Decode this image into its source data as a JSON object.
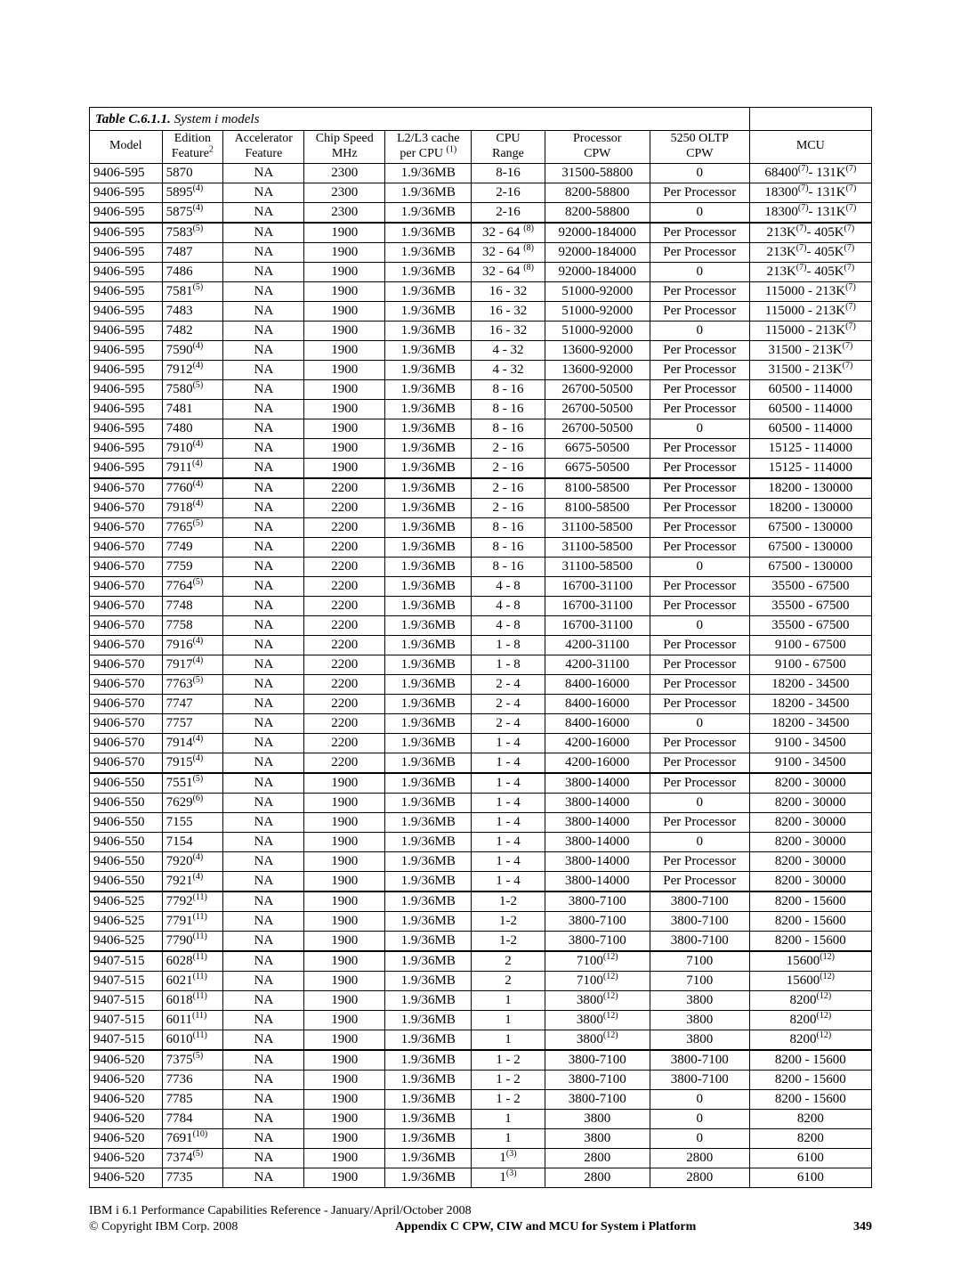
{
  "title_bold": "Table C.6.1.1.",
  "title_rest": "  System i models",
  "headers": {
    "model": "Model",
    "edition_l1": "Edition",
    "edition_l2": "Feature",
    "edition_sup": "2",
    "accel_l1": "Accelerator",
    "accel_l2": "Feature",
    "chip_l1": "Chip Speed",
    "chip_l2": "MHz",
    "cache_l1": "L2/L3 cache",
    "cache_l2": "per CPU ",
    "cache_sup": "(1)",
    "cpu_l1": "CPU",
    "cpu_l2": "Range",
    "proc_l1": "Processor",
    "proc_l2": "CPW",
    "oltp_l1": "5250 OLTP",
    "oltp_l2": "CPW",
    "mcu": "MCU"
  },
  "footer": {
    "line1": "IBM i 6.1 Performance Capabilities Reference - January/April/October 2008",
    "copyright": "© Copyright IBM Corp. 2008",
    "appendix": "Appendix C  CPW, CIW and MCU for  System i Platform",
    "page": "349"
  },
  "rows": [
    {
      "m": "9406-595",
      "ef": "5870",
      "efS": "",
      "ac": "NA",
      "ch": "2300",
      "ca": "1.9/36MB",
      "cr": "8-16",
      "crS": "",
      "pc": "31500-58800",
      "ol": "0",
      "mc": "68400",
      "mcS": "(7)",
      "mc2": "- 131K",
      "mc2S": "(7)"
    },
    {
      "m": "9406-595",
      "ef": "5895",
      "efS": "(4)",
      "ac": "NA",
      "ch": "2300",
      "ca": "1.9/36MB",
      "cr": "2-16",
      "crS": "",
      "pc": "8200-58800",
      "ol": "Per Processor",
      "mc": "18300",
      "mcS": "(7)",
      "mc2": "- 131K",
      "mc2S": "(7)"
    },
    {
      "m": "9406-595",
      "ef": "5875",
      "efS": "(4)",
      "ac": "NA",
      "ch": "2300",
      "ca": "1.9/36MB",
      "cr": "2-16",
      "crS": "",
      "pc": "8200-58800",
      "ol": "0",
      "mc": "18300",
      "mcS": "(7)",
      "mc2": "- 131K",
      "mc2S": "(7)"
    },
    {
      "sep": true,
      "m": "9406-595",
      "ef": "7583",
      "efS": "(5)",
      "ac": "NA",
      "ch": "1900",
      "ca": "1.9/36MB",
      "cr": "32 - 64 ",
      "crS": "(8)",
      "pc": "92000-184000",
      "ol": "Per Processor",
      "mc": "213K",
      "mcS": "(7)",
      "mc2": "- 405K",
      "mc2S": "(7)"
    },
    {
      "m": "9406-595",
      "ef": "7487",
      "efS": "",
      "ac": "NA",
      "ch": "1900",
      "ca": "1.9/36MB",
      "cr": "32 - 64 ",
      "crS": "(8)",
      "pc": "92000-184000",
      "ol": "Per Processor",
      "mc": "213K",
      "mcS": "(7)",
      "mc2": "- 405K",
      "mc2S": "(7)"
    },
    {
      "m": "9406-595",
      "ef": "7486",
      "efS": "",
      "ac": "NA",
      "ch": "1900",
      "ca": "1.9/36MB",
      "cr": "32 - 64 ",
      "crS": "(8)",
      "pc": "92000-184000",
      "ol": "0",
      "mc": "213K",
      "mcS": "(7)",
      "mc2": "- 405K",
      "mc2S": "(7)"
    },
    {
      "m": "9406-595",
      "ef": "7581",
      "efS": "(5)",
      "ac": "NA",
      "ch": "1900",
      "ca": "1.9/36MB",
      "cr": "16 - 32",
      "crS": "",
      "pc": "51000-92000",
      "ol": "Per Processor",
      "mc": "115000 - 213K",
      "mcS": "(7)",
      "mc2": "",
      "mc2S": ""
    },
    {
      "m": "9406-595",
      "ef": "7483",
      "efS": "",
      "ac": "NA",
      "ch": "1900",
      "ca": "1.9/36MB",
      "cr": "16 - 32",
      "crS": "",
      "pc": "51000-92000",
      "ol": "Per Processor",
      "mc": "115000 - 213K",
      "mcS": "(7)",
      "mc2": "",
      "mc2S": ""
    },
    {
      "m": "9406-595",
      "ef": "7482",
      "efS": "",
      "ac": "NA",
      "ch": "1900",
      "ca": "1.9/36MB",
      "cr": "16 - 32",
      "crS": "",
      "pc": "51000-92000",
      "ol": "0",
      "mc": "115000 - 213K",
      "mcS": "(7)",
      "mc2": "",
      "mc2S": ""
    },
    {
      "m": "9406-595",
      "ef": "7590",
      "efS": "(4)",
      "ac": "NA",
      "ch": "1900",
      "ca": "1.9/36MB",
      "cr": "4 - 32",
      "crS": "",
      "pc": "13600-92000",
      "ol": "Per Processor",
      "mc": "31500 - 213K",
      "mcS": "(7)",
      "mc2": "",
      "mc2S": ""
    },
    {
      "m": "9406-595",
      "ef": "7912",
      "efS": "(4)",
      "ac": "NA",
      "ch": "1900",
      "ca": "1.9/36MB",
      "cr": "4 - 32",
      "crS": "",
      "pc": "13600-92000",
      "ol": "Per Processor",
      "mc": "31500 - 213K",
      "mcS": "(7)",
      "mc2": "",
      "mc2S": ""
    },
    {
      "m": "9406-595",
      "ef": "7580",
      "efS": "(5)",
      "ac": "NA",
      "ch": "1900",
      "ca": "1.9/36MB",
      "cr": "8 - 16",
      "crS": "",
      "pc": "26700-50500",
      "ol": "Per Processor",
      "mc": "60500 - 114000",
      "mcS": "",
      "mc2": "",
      "mc2S": ""
    },
    {
      "m": "9406-595",
      "ef": "7481",
      "efS": "",
      "ac": "NA",
      "ch": "1900",
      "ca": "1.9/36MB",
      "cr": "8 - 16",
      "crS": "",
      "pc": "26700-50500",
      "ol": "Per Processor",
      "mc": "60500 - 114000",
      "mcS": "",
      "mc2": "",
      "mc2S": ""
    },
    {
      "m": "9406-595",
      "ef": "7480",
      "efS": "",
      "ac": "NA",
      "ch": "1900",
      "ca": "1.9/36MB",
      "cr": "8 - 16",
      "crS": "",
      "pc": "26700-50500",
      "ol": "0",
      "mc": "60500 - 114000",
      "mcS": "",
      "mc2": "",
      "mc2S": ""
    },
    {
      "m": "9406-595",
      "ef": "7910",
      "efS": "(4)",
      "ac": "NA",
      "ch": "1900",
      "ca": "1.9/36MB",
      "cr": "2 - 16",
      "crS": "",
      "pc": "6675-50500",
      "ol": "Per Processor",
      "mc": "15125 - 114000",
      "mcS": "",
      "mc2": "",
      "mc2S": ""
    },
    {
      "m": "9406-595",
      "ef": "7911",
      "efS": "(4)",
      "ac": "NA",
      "ch": "1900",
      "ca": "1.9/36MB",
      "cr": "2 - 16",
      "crS": "",
      "pc": "6675-50500",
      "ol": "Per Processor",
      "mc": "15125 - 114000",
      "mcS": "",
      "mc2": "",
      "mc2S": ""
    },
    {
      "sep": true,
      "m": "9406-570",
      "ef": "7760",
      "efS": "(4)",
      "ac": "NA",
      "ch": "2200",
      "ca": "1.9/36MB",
      "cr": "2 - 16",
      "crS": "",
      "pc": "8100-58500",
      "ol": "Per Processor",
      "mc": "18200 - 130000",
      "mcS": "",
      "mc2": "",
      "mc2S": ""
    },
    {
      "m": "9406-570",
      "ef": "7918",
      "efS": "(4)",
      "ac": "NA",
      "ch": "2200",
      "ca": "1.9/36MB",
      "cr": "2 - 16",
      "crS": "",
      "pc": "8100-58500",
      "ol": "Per Processor",
      "mc": "18200 - 130000",
      "mcS": "",
      "mc2": "",
      "mc2S": ""
    },
    {
      "m": "9406-570",
      "ef": "7765",
      "efS": "(5)",
      "ac": "NA",
      "ch": "2200",
      "ca": "1.9/36MB",
      "cr": "8 - 16",
      "crS": "",
      "pc": "31100-58500",
      "ol": "Per Processor",
      "mc": "67500 - 130000",
      "mcS": "",
      "mc2": "",
      "mc2S": ""
    },
    {
      "m": "9406-570",
      "ef": "7749",
      "efS": "",
      "ac": "NA",
      "ch": "2200",
      "ca": "1.9/36MB",
      "cr": "8 - 16",
      "crS": "",
      "pc": "31100-58500",
      "ol": "Per Processor",
      "mc": "67500 - 130000",
      "mcS": "",
      "mc2": "",
      "mc2S": ""
    },
    {
      "m": "9406-570",
      "ef": "7759",
      "efS": "",
      "ac": "NA",
      "ch": "2200",
      "ca": "1.9/36MB",
      "cr": "8 - 16",
      "crS": "",
      "pc": "31100-58500",
      "ol": "0",
      "mc": "67500 - 130000",
      "mcS": "",
      "mc2": "",
      "mc2S": ""
    },
    {
      "m": "9406-570",
      "ef": "7764",
      "efS": "(5)",
      "ac": "NA",
      "ch": "2200",
      "ca": "1.9/36MB",
      "cr": "4 - 8",
      "crS": "",
      "pc": "16700-31100",
      "ol": "Per Processor",
      "mc": "35500 - 67500",
      "mcS": "",
      "mc2": "",
      "mc2S": ""
    },
    {
      "m": "9406-570",
      "ef": "7748",
      "efS": "",
      "ac": "NA",
      "ch": "2200",
      "ca": "1.9/36MB",
      "cr": "4 - 8",
      "crS": "",
      "pc": "16700-31100",
      "ol": "Per Processor",
      "mc": "35500 - 67500",
      "mcS": "",
      "mc2": "",
      "mc2S": ""
    },
    {
      "m": "9406-570",
      "ef": "7758",
      "efS": "",
      "ac": "NA",
      "ch": "2200",
      "ca": "1.9/36MB",
      "cr": "4 - 8",
      "crS": "",
      "pc": "16700-31100",
      "ol": "0",
      "mc": "35500 - 67500",
      "mcS": "",
      "mc2": "",
      "mc2S": ""
    },
    {
      "m": "9406-570",
      "ef": "7916",
      "efS": "(4)",
      "ac": "NA",
      "ch": "2200",
      "ca": "1.9/36MB",
      "cr": "1 - 8",
      "crS": "",
      "pc": "4200-31100",
      "ol": "Per Processor",
      "mc": "9100 - 67500",
      "mcS": "",
      "mc2": "",
      "mc2S": ""
    },
    {
      "m": "9406-570",
      "ef": "7917",
      "efS": "(4)",
      "ac": "NA",
      "ch": "2200",
      "ca": "1.9/36MB",
      "cr": "1 - 8",
      "crS": "",
      "pc": "4200-31100",
      "ol": "Per Processor",
      "mc": "9100 - 67500",
      "mcS": "",
      "mc2": "",
      "mc2S": ""
    },
    {
      "m": "9406-570",
      "ef": "7763",
      "efS": "(5)",
      "ac": "NA",
      "ch": "2200",
      "ca": "1.9/36MB",
      "cr": "2 - 4",
      "crS": "",
      "pc": "8400-16000",
      "ol": "Per Processor",
      "mc": "18200 - 34500",
      "mcS": "",
      "mc2": "",
      "mc2S": ""
    },
    {
      "m": "9406-570",
      "ef": "7747",
      "efS": "",
      "ac": "NA",
      "ch": "2200",
      "ca": "1.9/36MB",
      "cr": "2 - 4",
      "crS": "",
      "pc": "8400-16000",
      "ol": "Per Processor",
      "mc": "18200 - 34500",
      "mcS": "",
      "mc2": "",
      "mc2S": ""
    },
    {
      "m": "9406-570",
      "ef": "7757",
      "efS": "",
      "ac": "NA",
      "ch": "2200",
      "ca": "1.9/36MB",
      "cr": "2 - 4",
      "crS": "",
      "pc": "8400-16000",
      "ol": "0",
      "mc": "18200 - 34500",
      "mcS": "",
      "mc2": "",
      "mc2S": ""
    },
    {
      "m": "9406-570",
      "ef": "7914",
      "efS": "(4)",
      "ac": "NA",
      "ch": "2200",
      "ca": "1.9/36MB",
      "cr": "1 - 4",
      "crS": "",
      "pc": "4200-16000",
      "ol": "Per Processor",
      "mc": "9100 - 34500",
      "mcS": "",
      "mc2": "",
      "mc2S": ""
    },
    {
      "m": "9406-570",
      "ef": "7915",
      "efS": "(4)",
      "ac": "NA",
      "ch": "2200",
      "ca": "1.9/36MB",
      "cr": "1 - 4",
      "crS": "",
      "pc": "4200-16000",
      "ol": "Per Processor",
      "mc": "9100 - 34500",
      "mcS": "",
      "mc2": "",
      "mc2S": ""
    },
    {
      "sep": true,
      "m": "9406-550",
      "ef": "7551",
      "efS": "(5)",
      "ac": "NA",
      "ch": "1900",
      "ca": "1.9/36MB",
      "cr": "1 - 4",
      "crS": "",
      "pc": "3800-14000",
      "ol": "Per Processor",
      "mc": "8200 - 30000",
      "mcS": "",
      "mc2": "",
      "mc2S": ""
    },
    {
      "m": "9406-550",
      "ef": "7629",
      "efS": "(6)",
      "ac": "NA",
      "ch": "1900",
      "ca": "1.9/36MB",
      "cr": "1 - 4",
      "crS": "",
      "pc": "3800-14000",
      "ol": "0",
      "mc": "8200 - 30000",
      "mcS": "",
      "mc2": "",
      "mc2S": ""
    },
    {
      "m": "9406-550",
      "ef": "7155",
      "efS": "",
      "ac": "NA",
      "ch": "1900",
      "ca": "1.9/36MB",
      "cr": "1 - 4",
      "crS": "",
      "pc": "3800-14000",
      "ol": "Per Processor",
      "mc": "8200 - 30000",
      "mcS": "",
      "mc2": "",
      "mc2S": ""
    },
    {
      "m": "9406-550",
      "ef": "7154",
      "efS": "",
      "ac": "NA",
      "ch": "1900",
      "ca": "1.9/36MB",
      "cr": "1 - 4",
      "crS": "",
      "pc": "3800-14000",
      "ol": "0",
      "mc": "8200 - 30000",
      "mcS": "",
      "mc2": "",
      "mc2S": ""
    },
    {
      "m": "9406-550",
      "ef": "7920",
      "efS": "(4)",
      "ac": "NA",
      "ch": "1900",
      "ca": "1.9/36MB",
      "cr": "1 - 4",
      "crS": "",
      "pc": "3800-14000",
      "ol": "Per Processor",
      "mc": "8200 - 30000",
      "mcS": "",
      "mc2": "",
      "mc2S": ""
    },
    {
      "m": "9406-550",
      "ef": "7921",
      "efS": "(4)",
      "ac": "NA",
      "ch": "1900",
      "ca": "1.9/36MB",
      "cr": "1 - 4",
      "crS": "",
      "pc": "3800-14000",
      "ol": "Per Processor",
      "mc": "8200 - 30000",
      "mcS": "",
      "mc2": "",
      "mc2S": ""
    },
    {
      "sep": true,
      "m": "9406-525",
      "ef": "7792",
      "efS": "(11)",
      "ac": "NA",
      "ch": "1900",
      "ca": "1.9/36MB",
      "cr": "1-2",
      "crS": "",
      "pc": "3800-7100",
      "ol": "3800-7100",
      "mc": "8200 - 15600",
      "mcS": "",
      "mc2": "",
      "mc2S": ""
    },
    {
      "m": "9406-525",
      "ef": "7791",
      "efS": "(11)",
      "ac": "NA",
      "ch": "1900",
      "ca": "1.9/36MB",
      "cr": "1-2",
      "crS": "",
      "pc": "3800-7100",
      "ol": "3800-7100",
      "mc": "8200 - 15600",
      "mcS": "",
      "mc2": "",
      "mc2S": ""
    },
    {
      "m": "9406-525",
      "ef": "7790",
      "efS": "(11)",
      "ac": "NA",
      "ch": "1900",
      "ca": "1.9/36MB",
      "cr": "1-2",
      "crS": "",
      "pc": "3800-7100",
      "ol": "3800-7100",
      "mc": "8200 - 15600",
      "mcS": "",
      "mc2": "",
      "mc2S": ""
    },
    {
      "sep": true,
      "m": "9407-515",
      "ef": "6028",
      "efS": "(11)",
      "ac": "NA",
      "ch": "1900",
      "ca": "1.9/36MB",
      "cr": "2",
      "crS": "",
      "pc": "7100",
      "pcS": "(12)",
      "ol": "7100",
      "mc": "15600",
      "mcS": "(12)",
      "mc2": "",
      "mc2S": ""
    },
    {
      "m": "9407-515",
      "ef": "6021",
      "efS": "(11)",
      "ac": "NA",
      "ch": "1900",
      "ca": "1.9/36MB",
      "cr": "2",
      "crS": "",
      "pc": "7100",
      "pcS": "(12)",
      "ol": "7100",
      "mc": "15600",
      "mcS": "(12)",
      "mc2": "",
      "mc2S": ""
    },
    {
      "m": "9407-515",
      "ef": "6018",
      "efS": "(11)",
      "ac": "NA",
      "ch": "1900",
      "ca": "1.9/36MB",
      "cr": "1",
      "crS": "",
      "pc": "3800",
      "pcS": "(12)",
      "ol": "3800",
      "mc": "8200",
      "mcS": "(12)",
      "mc2": "",
      "mc2S": ""
    },
    {
      "m": "9407-515",
      "ef": "6011",
      "efS": "(11)",
      "ac": "NA",
      "ch": "1900",
      "ca": "1.9/36MB",
      "cr": "1",
      "crS": "",
      "pc": "3800",
      "pcS": "(12)",
      "ol": "3800",
      "mc": "8200",
      "mcS": "(12)",
      "mc2": "",
      "mc2S": ""
    },
    {
      "m": "9407-515",
      "ef": "6010",
      "efS": "(11)",
      "ac": "NA",
      "ch": "1900",
      "ca": "1.9/36MB",
      "cr": "1",
      "crS": "",
      "pc": "3800",
      "pcS": "(12)",
      "ol": "3800",
      "mc": "8200",
      "mcS": "(12)",
      "mc2": "",
      "mc2S": ""
    },
    {
      "sep": true,
      "m": "9406-520",
      "ef": "7375",
      "efS": "(5)",
      "ac": "NA",
      "ch": "1900",
      "ca": "1.9/36MB",
      "cr": "1 - 2",
      "crS": "",
      "pc": "3800-7100",
      "ol": "3800-7100",
      "mc": "8200 - 15600",
      "mcS": "",
      "mc2": "",
      "mc2S": ""
    },
    {
      "m": "9406-520",
      "ef": "7736",
      "efS": "",
      "ac": "NA",
      "ch": "1900",
      "ca": "1.9/36MB",
      "cr": "1 - 2",
      "crS": "",
      "pc": "3800-7100",
      "ol": "3800-7100",
      "mc": "8200 - 15600",
      "mcS": "",
      "mc2": "",
      "mc2S": ""
    },
    {
      "m": "9406-520",
      "ef": "7785",
      "efS": "",
      "ac": "NA",
      "ch": "1900",
      "ca": "1.9/36MB",
      "cr": "1 - 2",
      "crS": "",
      "pc": "3800-7100",
      "ol": "0",
      "mc": "8200 - 15600",
      "mcS": "",
      "mc2": "",
      "mc2S": ""
    },
    {
      "m": "9406-520",
      "ef": "7784",
      "efS": "",
      "ac": "NA",
      "ch": "1900",
      "ca": "1.9/36MB",
      "cr": "1",
      "crS": "",
      "pc": "3800",
      "ol": "0",
      "mc": "8200",
      "mcS": "",
      "mc2": "",
      "mc2S": ""
    },
    {
      "m": "9406-520",
      "ef": "7691",
      "efS": "(10)",
      "ac": "NA",
      "ch": "1900",
      "ca": "1.9/36MB",
      "cr": "1",
      "crS": "",
      "pc": "3800",
      "ol": "0",
      "mc": "8200",
      "mcS": "",
      "mc2": "",
      "mc2S": ""
    },
    {
      "m": "9406-520",
      "ef": "7374",
      "efS": "(5)",
      "ac": "NA",
      "ch": "1900",
      "ca": "1.9/36MB",
      "cr": "1",
      "crS": "(3)",
      "pc": "2800",
      "ol": "2800",
      "mc": "6100",
      "mcS": "",
      "mc2": "",
      "mc2S": ""
    },
    {
      "m": "9406-520",
      "ef": "7735",
      "efS": "",
      "ac": "NA",
      "ch": "1900",
      "ca": "1.9/36MB",
      "cr": "1",
      "crS": "(3)",
      "pc": "2800",
      "ol": "2800",
      "mc": "6100",
      "mcS": "",
      "mc2": "",
      "mc2S": ""
    }
  ]
}
